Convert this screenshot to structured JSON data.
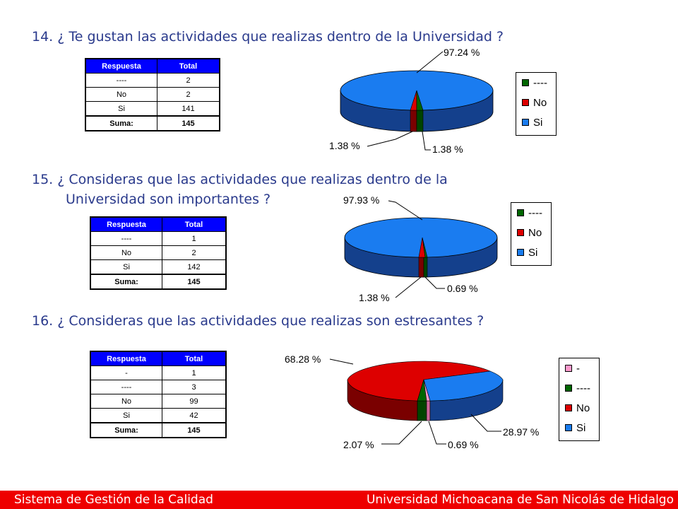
{
  "q14": {
    "title": "14. ¿ Te gustan las actividades que realizas dentro de la Universidad ?",
    "table": {
      "header": [
        "Respuesta",
        "Total"
      ],
      "rows": [
        [
          "----",
          "2"
        ],
        [
          "No",
          "2"
        ],
        [
          "Si",
          "141"
        ]
      ],
      "sum": [
        "Suma:",
        "145"
      ]
    },
    "legend": [
      "----",
      "No",
      "Si"
    ],
    "labels": {
      "si": "97.24 %",
      "no": "1.38 %",
      "dash": "1.38 %"
    }
  },
  "q15": {
    "title_line1": "15. ¿ Consideras que las actividades que realizas dentro de la",
    "title_line2": "Universidad son importantes ?",
    "table": {
      "header": [
        "Respuesta",
        "Total"
      ],
      "rows": [
        [
          "----",
          "1"
        ],
        [
          "No",
          "2"
        ],
        [
          "Si",
          "142"
        ]
      ],
      "sum": [
        "Suma:",
        "145"
      ]
    },
    "legend": [
      "----",
      "No",
      "Si"
    ],
    "labels": {
      "si": "97.93 %",
      "no": "1.38 %",
      "dash": "0.69 %"
    }
  },
  "q16": {
    "title": "16. ¿ Consideras que las actividades que realizas son estresantes ?",
    "table": {
      "header": [
        "Respuesta",
        "Total"
      ],
      "rows": [
        [
          "-",
          "1"
        ],
        [
          "----",
          "3"
        ],
        [
          "No",
          "99"
        ],
        [
          "Si",
          "42"
        ]
      ],
      "sum": [
        "Suma:",
        "145"
      ]
    },
    "legend": [
      "-",
      "----",
      "No",
      "Si"
    ],
    "labels": {
      "no": "68.28 %",
      "si": "28.97 %",
      "dash": "2.07 %",
      "minus": "0.69 %"
    }
  },
  "colors": {
    "si": "#1a7cf0",
    "si_dark": "#14408c",
    "no": "#dd0000",
    "no_dark": "#7a0000",
    "dash": "#006600",
    "minus": "#ff99cc",
    "title": "#2a3a8c",
    "footer": "#ee0000"
  },
  "chart_data": [
    {
      "type": "pie",
      "title": "14. ¿ Te gustan las actividades que realizas dentro de la Universidad ?",
      "categories": [
        "----",
        "No",
        "Si"
      ],
      "values": [
        2,
        2,
        141
      ],
      "percent": [
        1.38,
        1.38,
        97.24
      ]
    },
    {
      "type": "pie",
      "title": "15. ¿ Consideras que las actividades que realizas dentro de la Universidad son importantes ?",
      "categories": [
        "----",
        "No",
        "Si"
      ],
      "values": [
        1,
        2,
        142
      ],
      "percent": [
        0.69,
        1.38,
        97.93
      ]
    },
    {
      "type": "pie",
      "title": "16. ¿ Consideras que las actividades que realizas son estresantes ?",
      "categories": [
        "-",
        "----",
        "No",
        "Si"
      ],
      "values": [
        1,
        3,
        99,
        42
      ],
      "percent": [
        0.69,
        2.07,
        68.28,
        28.97
      ]
    }
  ],
  "footer": {
    "left": "Sistema de Gestión de la Calidad",
    "right": "Universidad Michoacana de San Nicolás de Hidalgo"
  }
}
